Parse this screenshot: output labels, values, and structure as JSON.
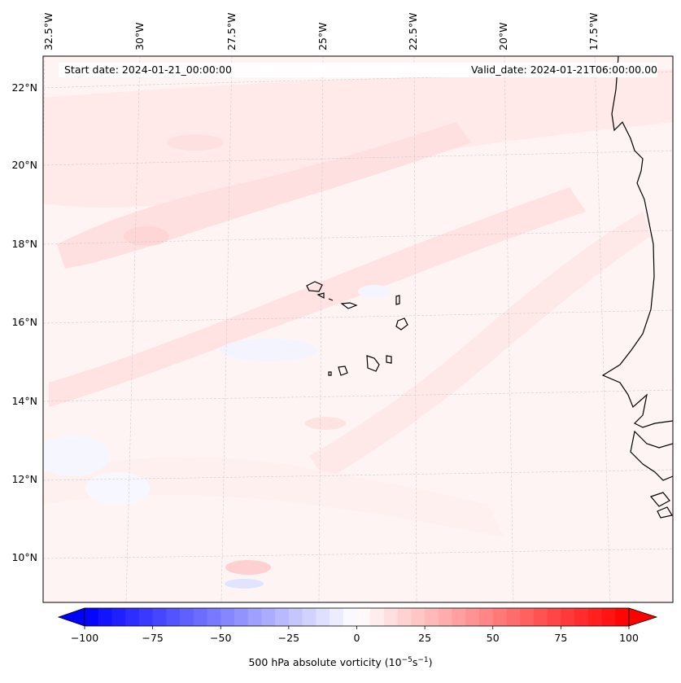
{
  "header": {
    "start_date": "Start date: 2024-01-21_00:00:00",
    "valid_date": "Valid_date: 2024-01-21T06:00:00.00"
  },
  "map": {
    "lon_labels": [
      "32.5°W",
      "30°W",
      "27.5°W",
      "25°W",
      "22.5°W",
      "20°W",
      "17.5°W"
    ],
    "lat_labels": [
      "22°N",
      "20°N",
      "18°N",
      "16°N",
      "14°N",
      "12°N",
      "10°N"
    ],
    "field": "500 hPa absolute vorticity"
  },
  "colorbar": {
    "ticks": [
      "−100",
      "−75",
      "−50",
      "−25",
      "0",
      "25",
      "50",
      "75",
      "100"
    ],
    "range": [
      -100,
      100
    ],
    "colors": {
      "min": "#0000ff",
      "mid": "#ffffff",
      "max": "#ff0000"
    },
    "label_prefix": "500 hPa absolute vorticity (10",
    "label_exp1": "−5",
    "label_mid": "s",
    "label_exp2": "−1",
    "label_suffix": ")"
  },
  "colors": {
    "coastline": "#000000",
    "grid": "#cccccc"
  }
}
